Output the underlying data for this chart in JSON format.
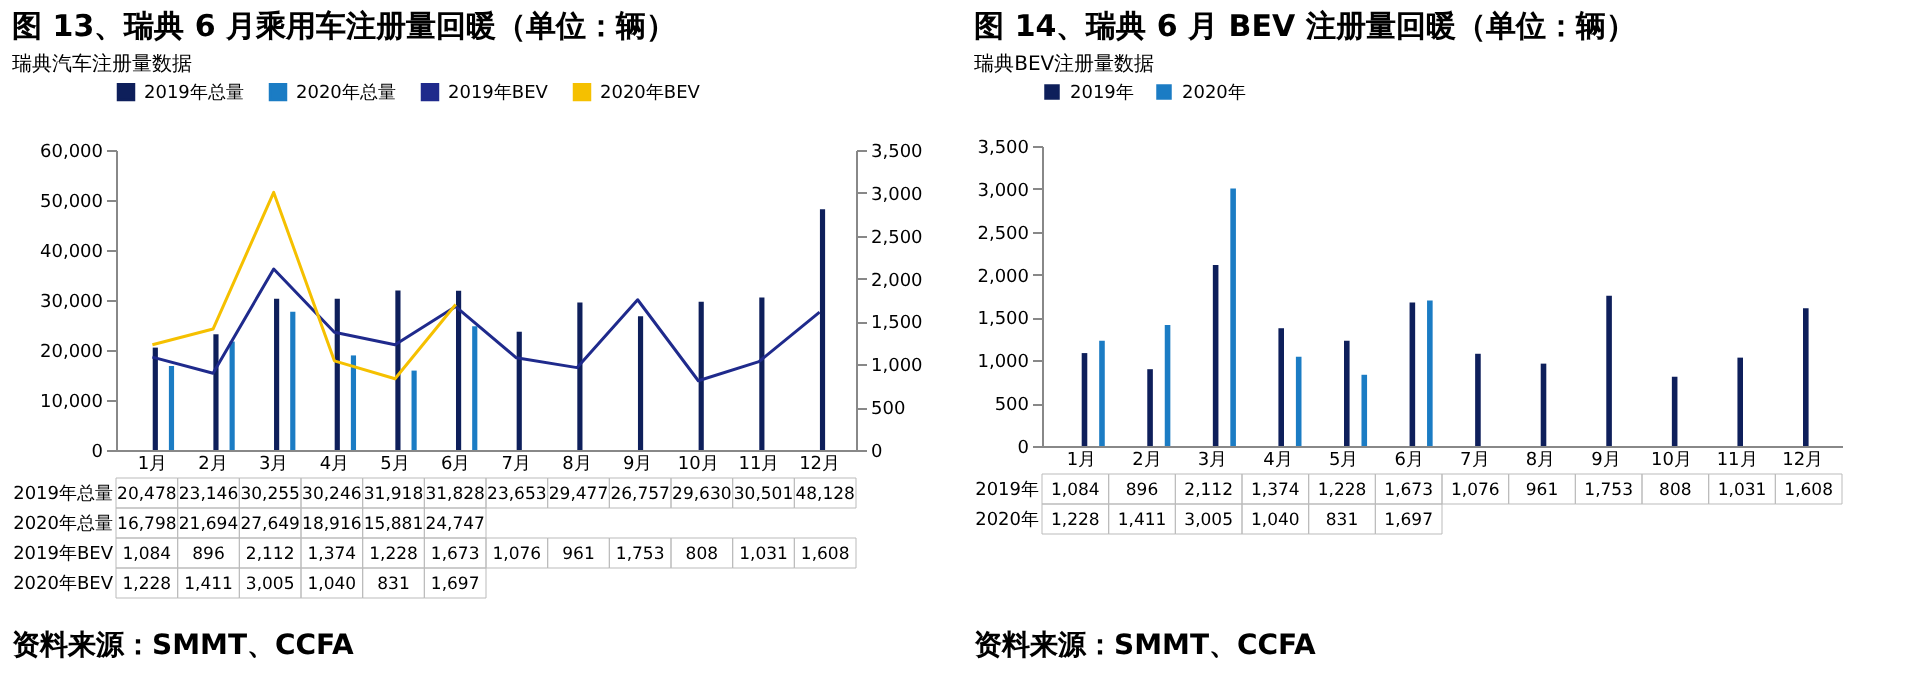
{
  "chart_data": [
    {
      "type": "bar",
      "title": "图 13、瑞典 6 月乘用车注册量回暖（单位：辆）",
      "subtitle": "瑞典汽车注册量数据",
      "categories": [
        "1月",
        "2月",
        "3月",
        "4月",
        "5月",
        "6月",
        "7月",
        "8月",
        "9月",
        "10月",
        "11月",
        "12月"
      ],
      "series": [
        {
          "name": "2019年总量",
          "color": "#0e1f5b",
          "values": [
            20478,
            23146,
            30255,
            30246,
            31918,
            31828,
            23653,
            29477,
            26757,
            29630,
            30501,
            48128
          ],
          "value_labels": [
            "20,478",
            "23,146",
            "30,255",
            "30,246",
            "31,918",
            "31,828",
            "23,653",
            "29,477",
            "26,757",
            "29,630",
            "30,501",
            "48,128"
          ]
        },
        {
          "name": "2020年总量",
          "color": "#1b7cc4",
          "values": [
            16798,
            21694,
            27649,
            18916,
            15881,
            24747,
            null,
            null,
            null,
            null,
            null,
            null
          ],
          "value_labels": [
            "16,798",
            "21,694",
            "27,649",
            "18,916",
            "15,881",
            "24,747",
            null,
            null,
            null,
            null,
            null,
            null
          ]
        },
        {
          "name": "2019年BEV",
          "type": "line",
          "axis": "y2",
          "color": "#1f2a8c",
          "values": [
            1084,
            896,
            2112,
            1374,
            1228,
            1673,
            1076,
            961,
            1753,
            808,
            1031,
            1608
          ],
          "value_labels": [
            "1,084",
            "896",
            "2,112",
            "1,374",
            "1,228",
            "1,673",
            "1,076",
            "961",
            "1,753",
            "808",
            "1,031",
            "1,608"
          ]
        },
        {
          "name": "2020年BEV",
          "type": "line",
          "axis": "y2",
          "color": "#f5c000",
          "values": [
            1228,
            1411,
            3005,
            1040,
            831,
            1697,
            null,
            null,
            null,
            null,
            null,
            null
          ],
          "value_labels": [
            "1,228",
            "1,411",
            "3,005",
            "1,040",
            "831",
            "1,697",
            null,
            null,
            null,
            null,
            null,
            null
          ]
        }
      ],
      "ylim": [
        0,
        60000
      ],
      "yticks": [
        {
          "value": 0,
          "label": "0"
        },
        {
          "value": 10000,
          "label": "10,000"
        },
        {
          "value": 20000,
          "label": "20,000"
        },
        {
          "value": 30000,
          "label": "30,000"
        },
        {
          "value": 40000,
          "label": "40,000"
        },
        {
          "value": 50000,
          "label": "50,000"
        },
        {
          "value": 60000,
          "label": "60,000"
        }
      ],
      "y2lim": [
        0,
        3500
      ],
      "y2ticks": [
        {
          "value": 0,
          "label": "0"
        },
        {
          "value": 500,
          "label": "500"
        },
        {
          "value": 1000,
          "label": "1,000"
        },
        {
          "value": 1500,
          "label": "1,500"
        },
        {
          "value": 2000,
          "label": "2,000"
        },
        {
          "value": 2500,
          "label": "2,500"
        },
        {
          "value": 3000,
          "label": "3,000"
        },
        {
          "value": 3500,
          "label": "3,500"
        }
      ],
      "legend": "top",
      "annotations": [
        "资料来源：SMMT、CCFA"
      ]
    },
    {
      "type": "bar",
      "title": "图 14、瑞典 6 月 BEV 注册量回暖（单位：辆）",
      "subtitle": "瑞典BEV注册量数据",
      "categories": [
        "1月",
        "2月",
        "3月",
        "4月",
        "5月",
        "6月",
        "7月",
        "8月",
        "9月",
        "10月",
        "11月",
        "12月"
      ],
      "series": [
        {
          "name": "2019年",
          "color": "#0e1f5b",
          "values": [
            1084,
            896,
            2112,
            1374,
            1228,
            1673,
            1076,
            961,
            1753,
            808,
            1031,
            1608
          ],
          "value_labels": [
            "1,084",
            "896",
            "2,112",
            "1,374",
            "1,228",
            "1,673",
            "1,076",
            "961",
            "1,753",
            "808",
            "1,031",
            "1,608"
          ]
        },
        {
          "name": "2020年",
          "color": "#1b7cc4",
          "values": [
            1228,
            1411,
            3005,
            1040,
            831,
            1697,
            null,
            null,
            null,
            null,
            null,
            null
          ],
          "value_labels": [
            "1,228",
            "1,411",
            "3,005",
            "1,040",
            "831",
            "1,697",
            null,
            null,
            null,
            null,
            null,
            null
          ]
        }
      ],
      "ylim": [
        0,
        3500
      ],
      "yticks": [
        0,
        500,
        {
          "value": 1000,
          "label": "1,000"
        },
        {
          "value": 1500,
          "label": "1,500"
        },
        {
          "value": 2000,
          "label": "2,000"
        },
        {
          "value": 2500,
          "label": "2,500"
        },
        {
          "value": 3000,
          "label": "3,000"
        },
        {
          "value": 3500,
          "label": "3,500"
        }
      ],
      "legend": "top",
      "annotations": [
        "资料来源：SMMT、CCFA"
      ]
    }
  ]
}
